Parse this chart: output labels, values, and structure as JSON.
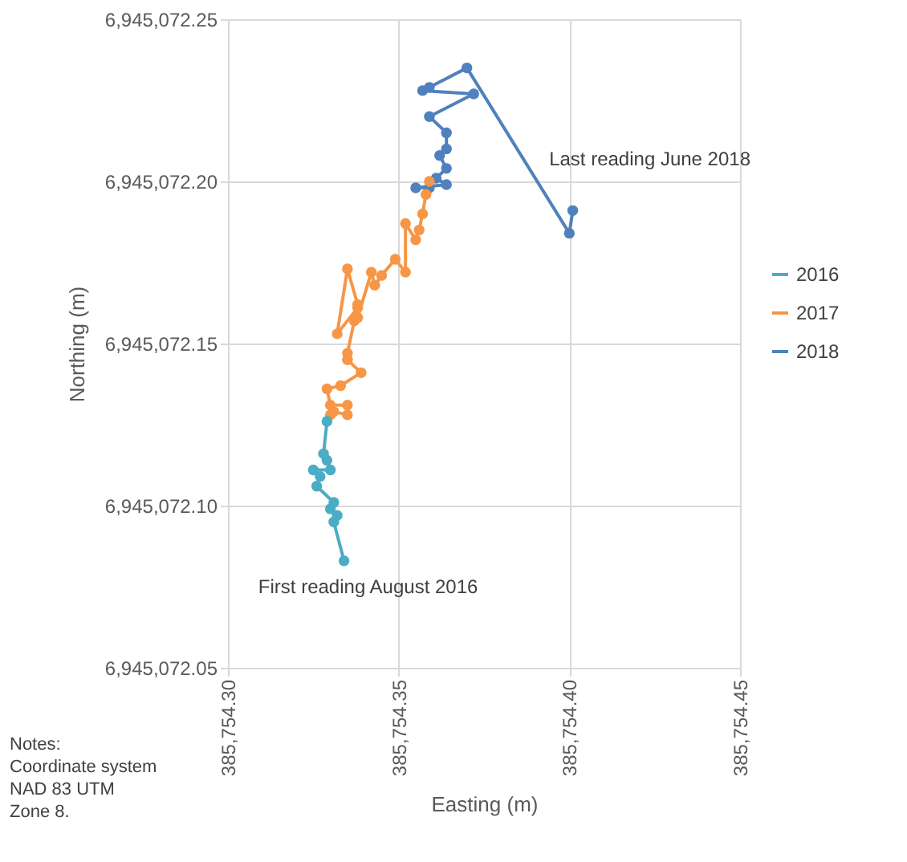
{
  "chart_data": {
    "type": "line",
    "xlabel": "Easting (m)",
    "ylabel": "Northing (m)",
    "xlim": [
      385754.3,
      385754.45
    ],
    "xticks": [
      {
        "value": 385754.3,
        "label": "385,754.30"
      },
      {
        "value": 385754.35,
        "label": "385,754.35"
      },
      {
        "value": 385754.4,
        "label": "385,754.40"
      },
      {
        "value": 385754.45,
        "label": "385,754.45"
      }
    ],
    "ylim": [
      6945072.05,
      6945072.25
    ],
    "yticks": [
      {
        "value": 6945072.05,
        "label": "6,945,072.05"
      },
      {
        "value": 6945072.1,
        "label": "6,945,072.10"
      },
      {
        "value": 6945072.15,
        "label": "6,945,072.15"
      },
      {
        "value": 6945072.2,
        "label": "6,945,072.20"
      },
      {
        "value": 6945072.25,
        "label": "6,945,072.25"
      }
    ],
    "grid": true,
    "legend": "right",
    "marker": "circle",
    "line_style": "solid",
    "series": [
      {
        "name": "2016",
        "color": "#4bacc6",
        "x": [
          385754.334,
          385754.331,
          385754.332,
          385754.33,
          385754.331,
          385754.326,
          385754.327,
          385754.325,
          385754.33,
          385754.329,
          385754.328,
          385754.329
        ],
        "values": [
          6945072.083,
          6945072.095,
          6945072.097,
          6945072.099,
          6945072.101,
          6945072.106,
          6945072.109,
          6945072.111,
          6945072.111,
          6945072.114,
          6945072.116,
          6945072.126
        ]
      },
      {
        "name": "2017",
        "color": "#f79646",
        "x": [
          385754.33,
          385754.331,
          385754.335,
          385754.335,
          385754.33,
          385754.329,
          385754.333,
          385754.339,
          385754.335,
          385754.335,
          385754.337,
          385754.338,
          385754.332,
          385754.335,
          385754.338,
          385754.338,
          385754.342,
          385754.343,
          385754.345,
          385754.349,
          385754.352,
          385754.352,
          385754.355,
          385754.356,
          385754.357,
          385754.358,
          385754.359
        ],
        "values": [
          6945072.128,
          6945072.129,
          6945072.128,
          6945072.131,
          6945072.131,
          6945072.136,
          6945072.137,
          6945072.141,
          6945072.145,
          6945072.147,
          6945072.157,
          6945072.161,
          6945072.153,
          6945072.173,
          6945072.162,
          6945072.158,
          6945072.172,
          6945072.168,
          6945072.171,
          6945072.176,
          6945072.172,
          6945072.187,
          6945072.182,
          6945072.185,
          6945072.19,
          6945072.196,
          6945072.2
        ]
      },
      {
        "name": "2018",
        "color": "#4f81bd",
        "x": [
          385754.359,
          385754.355,
          385754.364,
          385754.361,
          385754.364,
          385754.362,
          385754.364,
          385754.364,
          385754.359,
          385754.372,
          385754.357,
          385754.359,
          385754.37,
          385754.4,
          385754.401
        ],
        "values": [
          6945072.198,
          6945072.198,
          6945072.199,
          6945072.201,
          6945072.204,
          6945072.208,
          6945072.21,
          6945072.215,
          6945072.22,
          6945072.227,
          6945072.228,
          6945072.229,
          6945072.235,
          6945072.184,
          6945072.191
        ]
      }
    ],
    "annotations": [
      {
        "text": "First reading August 2016",
        "x": 385754.334,
        "y": 6945072.083
      },
      {
        "text": "Last reading June 2018",
        "x": 385754.401,
        "y": 6945072.191
      },
      "Notes:\nCoordinate system\nNAD 83 UTM\nZone 8."
    ]
  }
}
